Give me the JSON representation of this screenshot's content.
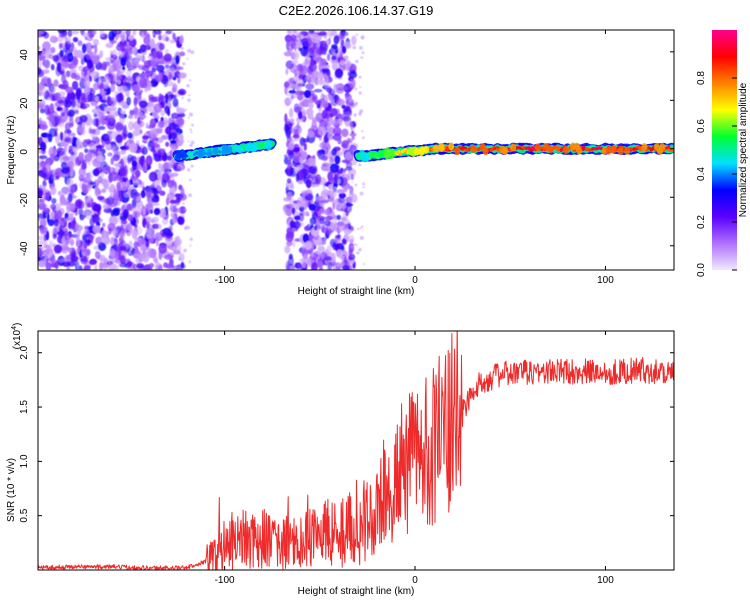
{
  "title": "C2E2.2026.106.14.37.G19",
  "chart_data": [
    {
      "type": "heatmap",
      "xlabel": "Height of straight line (km)",
      "ylabel": "Frequency (Hz)",
      "xlim": [
        -198,
        136
      ],
      "ylim": [
        -50,
        49
      ],
      "xticks": [
        -100,
        0,
        100
      ],
      "xtick_labels": [
        "-100",
        "0",
        "100"
      ],
      "yticks": [
        -40,
        -20,
        0,
        20,
        40
      ],
      "ytick_labels": [
        "-40",
        "-20",
        "0",
        "20",
        "40"
      ],
      "colorbar": {
        "label": "Normalized spectral amplitude",
        "range": [
          0,
          1
        ],
        "ticks": [
          0,
          0.2,
          0.4,
          0.6,
          0.8
        ],
        "tick_labels": [
          "0.0",
          "0.2",
          "0.4",
          "0.6",
          "0.8"
        ],
        "colors": [
          "#f0e8ff",
          "#b070ff",
          "#5a00ff",
          "#0000ff",
          "#00e0ff",
          "#00ff30",
          "#ffff00",
          "#ff8000",
          "#ff0000",
          "#ff0090"
        ]
      },
      "noise_regions": [
        {
          "x_from": -198,
          "x_to": -122,
          "y_from": -50,
          "y_to": 49
        },
        {
          "x_from": -68,
          "x_to": -32,
          "y_from": -50,
          "y_to": 49
        }
      ],
      "signal_track": {
        "x": [
          -125,
          -115,
          -105,
          -95,
          -85,
          -75,
          -30,
          -25,
          -15,
          -5,
          0,
          10,
          20,
          40,
          60,
          80,
          100,
          120,
          136
        ],
        "y": [
          -3,
          -2,
          -1,
          0,
          1,
          2,
          -3,
          -3,
          -2,
          -1,
          -1,
          0,
          0,
          0,
          0,
          0,
          0,
          0,
          0
        ],
        "amplitude": [
          0.4,
          0.45,
          0.45,
          0.5,
          0.5,
          0.55,
          0.5,
          0.6,
          0.65,
          0.7,
          0.75,
          0.8,
          0.9,
          0.85,
          0.9,
          0.85,
          0.9,
          0.85,
          0.8
        ]
      }
    },
    {
      "type": "line",
      "xlabel": "Height of straight line (km)",
      "ylabel": "SNR (10 * v/v)",
      "multiplier_label": "(x10",
      "multiplier_exp": "4",
      "xlim": [
        -198,
        136
      ],
      "ylim": [
        0,
        2.2
      ],
      "xticks": [
        -100,
        0,
        100
      ],
      "xtick_labels": [
        "-100",
        "0",
        "100"
      ],
      "yticks": [
        0.5,
        1.0,
        1.5,
        2.0
      ],
      "ytick_labels": [
        "0.5",
        "1.0",
        "1.5",
        "2.0"
      ],
      "series": [
        {
          "name": "SNR",
          "color": "#ee2a2a",
          "x": [
            -198,
            -180,
            -160,
            -140,
            -120,
            -110,
            -102,
            -95,
            -85,
            -75,
            -65,
            -55,
            -45,
            -35,
            -25,
            -18,
            -12,
            -6,
            0,
            8,
            16,
            24,
            30,
            36,
            45,
            60,
            80,
            100,
            120,
            136
          ],
          "y": [
            0.02,
            0.03,
            0.03,
            0.02,
            0.02,
            0.08,
            0.2,
            0.28,
            0.28,
            0.3,
            0.25,
            0.3,
            0.35,
            0.4,
            0.45,
            0.6,
            0.75,
            0.95,
            1.05,
            1.15,
            1.25,
            1.45,
            1.62,
            1.75,
            1.8,
            1.82,
            1.83,
            1.82,
            1.84,
            1.82
          ]
        }
      ]
    }
  ]
}
